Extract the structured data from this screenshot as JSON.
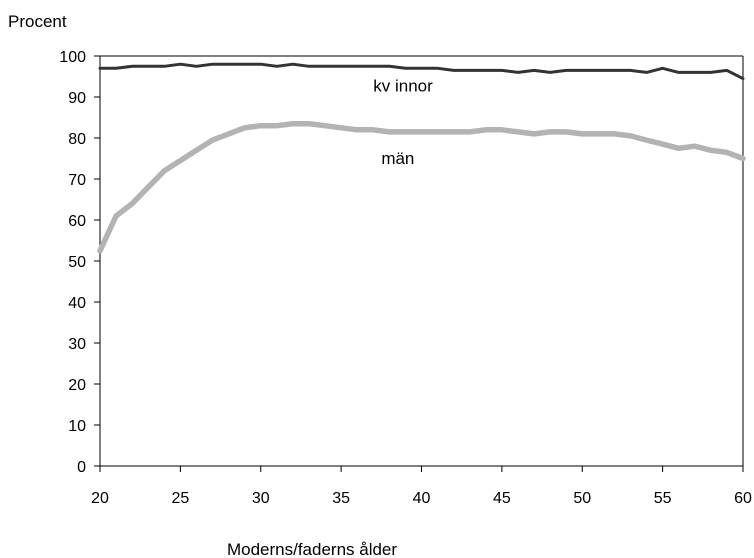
{
  "chart_data": {
    "type": "line",
    "title": "",
    "xlabel": "Moderns/faderns ålder",
    "ylabel": "Procent",
    "xlim": [
      20,
      60
    ],
    "ylim": [
      0,
      100
    ],
    "xticks": [
      20,
      25,
      30,
      35,
      40,
      45,
      50,
      55,
      60
    ],
    "yticks": [
      0,
      10,
      20,
      30,
      40,
      50,
      60,
      70,
      80,
      90,
      100
    ],
    "grid": false,
    "legend": "none",
    "x": [
      20,
      21,
      22,
      23,
      24,
      25,
      26,
      27,
      28,
      29,
      30,
      31,
      32,
      33,
      34,
      35,
      36,
      37,
      38,
      39,
      40,
      41,
      42,
      43,
      44,
      45,
      46,
      47,
      48,
      49,
      50,
      51,
      52,
      53,
      54,
      55,
      56,
      57,
      58,
      59,
      60
    ],
    "series": [
      {
        "name": "kvinnor",
        "label_text": "kv innor",
        "color": "#333333",
        "values": [
          97,
          97,
          97.5,
          97.5,
          97.5,
          98,
          97.5,
          98,
          98,
          98,
          98,
          97.5,
          98,
          97.5,
          97.5,
          97.5,
          97.5,
          97.5,
          97.5,
          97,
          97,
          97,
          96.5,
          96.5,
          96.5,
          96.5,
          96,
          96.5,
          96,
          96.5,
          96.5,
          96.5,
          96.5,
          96.5,
          96,
          97,
          96,
          96,
          96,
          96.5,
          94.5
        ]
      },
      {
        "name": "män",
        "label_text": "män",
        "color": "#b3b3b3",
        "values": [
          52.5,
          61,
          64,
          68,
          72,
          74.5,
          77,
          79.5,
          81,
          82.5,
          83,
          83,
          83.5,
          83.5,
          83,
          82.5,
          82,
          82,
          81.5,
          81.5,
          81.5,
          81.5,
          81.5,
          81.5,
          82,
          82,
          81.5,
          81,
          81.5,
          81.5,
          81,
          81,
          81,
          80.5,
          79.5,
          78.5,
          77.5,
          78,
          77,
          76.5,
          75
        ]
      }
    ]
  }
}
